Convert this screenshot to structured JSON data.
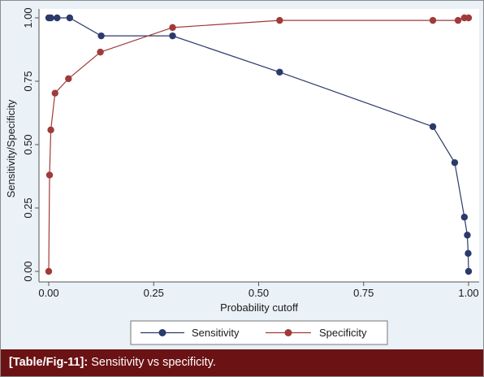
{
  "chart_data": {
    "type": "line",
    "title": "",
    "xlabel": "Probability cutoff",
    "ylabel": "Sensitivity/Specificity",
    "xlim": [
      0,
      1
    ],
    "ylim": [
      0,
      1
    ],
    "xticks": [
      0,
      0.25,
      0.5,
      0.75,
      1
    ],
    "xtick_labels": [
      "0.00",
      "0.25",
      "0.50",
      "0.75",
      "1.00"
    ],
    "yticks": [
      0,
      0.25,
      0.5,
      0.75,
      1
    ],
    "ytick_labels": [
      "0.00",
      "0.25",
      "0.50",
      "0.75",
      "1.00"
    ],
    "grid": false,
    "legend_position": "bottom",
    "series": [
      {
        "name": "Sensitivity",
        "color": "#2b3a6b",
        "points": [
          [
            0.0,
            1.0
          ],
          [
            0.005,
            1.0
          ],
          [
            0.02,
            1.0
          ],
          [
            0.05,
            1.0
          ],
          [
            0.125,
            0.929
          ],
          [
            0.295,
            0.929
          ],
          [
            0.55,
            0.786
          ],
          [
            0.915,
            0.571
          ],
          [
            0.967,
            0.429
          ],
          [
            0.99,
            0.214
          ],
          [
            0.997,
            0.143
          ],
          [
            0.999,
            0.071
          ],
          [
            1.0,
            0.0
          ]
        ]
      },
      {
        "name": "Specificity",
        "color": "#a13a3a",
        "points": [
          [
            0.0,
            0.0
          ],
          [
            0.002,
            0.38
          ],
          [
            0.005,
            0.558
          ],
          [
            0.015,
            0.703
          ],
          [
            0.047,
            0.76
          ],
          [
            0.123,
            0.865
          ],
          [
            0.295,
            0.962
          ],
          [
            0.55,
            0.99
          ],
          [
            0.915,
            0.99
          ],
          [
            0.975,
            0.99
          ],
          [
            0.99,
            1.0
          ],
          [
            1.0,
            1.0
          ]
        ]
      }
    ]
  },
  "caption": {
    "label": "[Table/Fig-11]:",
    "text": " Sensitivity vs specificity."
  }
}
